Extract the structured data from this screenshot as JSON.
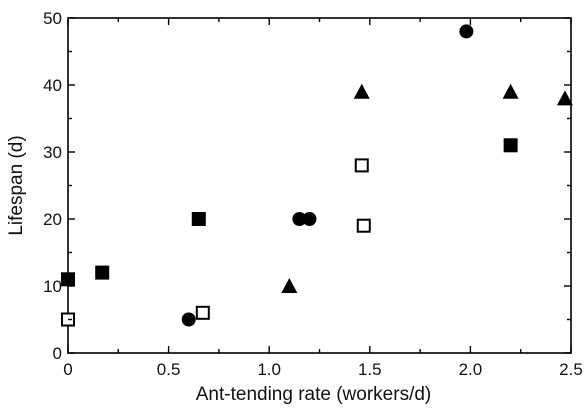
{
  "chart_data": {
    "type": "scatter",
    "xlabel": "Ant-tending rate (workers/d)",
    "ylabel": "Lifespan (d)",
    "xlim": [
      0,
      2.5
    ],
    "ylim": [
      0,
      50
    ],
    "x_ticks": [
      "0",
      "0.5",
      "1.0",
      "1.5",
      "2.0",
      "2.5"
    ],
    "x_tick_values": [
      0,
      0.5,
      1.0,
      1.5,
      2.0,
      2.5
    ],
    "y_ticks": [
      "0",
      "10",
      "20",
      "30",
      "40",
      "50"
    ],
    "y_tick_values": [
      0,
      10,
      20,
      30,
      40,
      50
    ],
    "grid": false,
    "series": [
      {
        "marker": "filled-circle",
        "points": [
          {
            "x": 0.6,
            "y": 5
          },
          {
            "x": 1.15,
            "y": 20
          },
          {
            "x": 1.2,
            "y": 20
          },
          {
            "x": 1.98,
            "y": 48
          }
        ]
      },
      {
        "marker": "filled-square",
        "points": [
          {
            "x": 0.0,
            "y": 11
          },
          {
            "x": 0.17,
            "y": 12
          },
          {
            "x": 0.65,
            "y": 20
          },
          {
            "x": 2.2,
            "y": 31
          }
        ]
      },
      {
        "marker": "open-square",
        "points": [
          {
            "x": 0.0,
            "y": 5
          },
          {
            "x": 0.67,
            "y": 6
          },
          {
            "x": 1.46,
            "y": 28
          },
          {
            "x": 1.47,
            "y": 19
          }
        ]
      },
      {
        "marker": "filled-triangle",
        "points": [
          {
            "x": 1.1,
            "y": 10
          },
          {
            "x": 1.46,
            "y": 39
          },
          {
            "x": 2.2,
            "y": 39
          },
          {
            "x": 2.47,
            "y": 38
          }
        ]
      }
    ]
  }
}
